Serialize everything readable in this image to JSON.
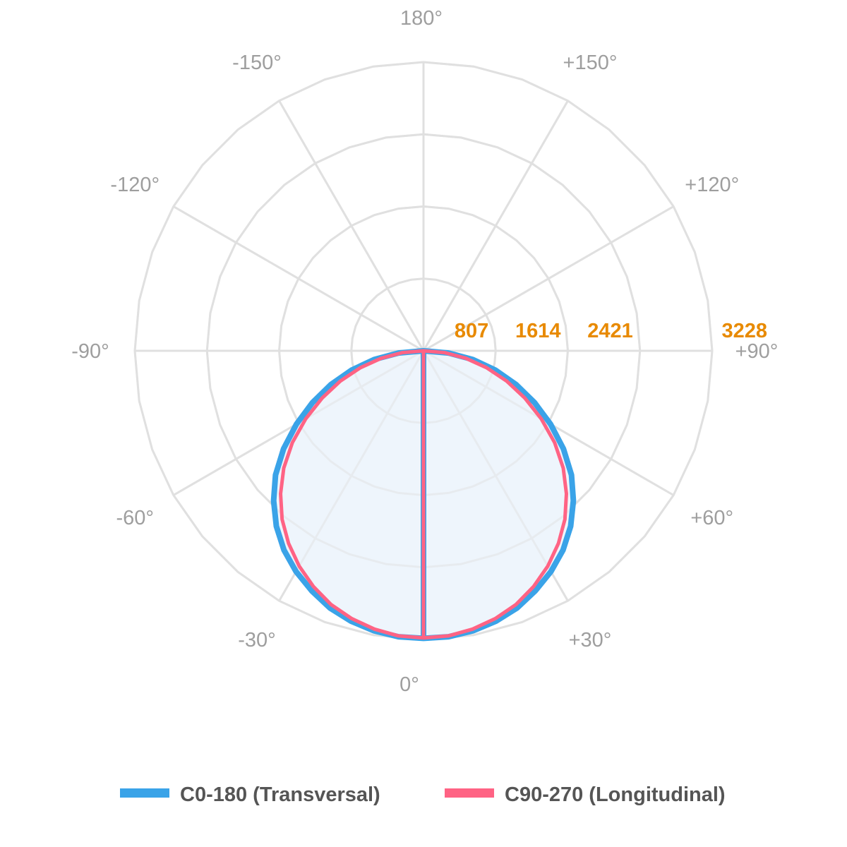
{
  "chart_data": {
    "type": "polar-line",
    "angle_labels": [
      "180°",
      "+150°",
      "+120°",
      "+90°",
      "+60°",
      "+30°",
      "0°",
      "-30°",
      "-60°",
      "-90°",
      "-120°",
      "-150°"
    ],
    "radial_ticks": [
      807,
      1614,
      2421,
      3228
    ],
    "rlim": [
      0,
      3228
    ],
    "angle_unit": "degrees",
    "angle_zero": "bottom",
    "grid": true,
    "legend_position": "bottom",
    "angles": [
      0,
      5,
      10,
      15,
      20,
      25,
      30,
      35,
      40,
      45,
      50,
      55,
      60,
      65,
      70,
      75,
      80,
      85,
      90
    ],
    "series": [
      {
        "name": "C0-180 (Transversal)",
        "color": "#3aa3e8",
        "values": [
          3215,
          3210,
          3180,
          3130,
          3060,
          2960,
          2850,
          2720,
          2560,
          2370,
          2160,
          1910,
          1640,
          1370,
          1100,
          830,
          560,
          280,
          0
        ]
      },
      {
        "name": "C90-270 (Longitudinal)",
        "color": "#ff6384",
        "values": [
          3210,
          3200,
          3160,
          3100,
          3020,
          2910,
          2780,
          2630,
          2460,
          2260,
          2040,
          1790,
          1520,
          1250,
          990,
          730,
          480,
          240,
          0
        ]
      }
    ],
    "symmetric": true,
    "fill_color": "#eef5fc",
    "tick_label_color": "#e88a00"
  }
}
